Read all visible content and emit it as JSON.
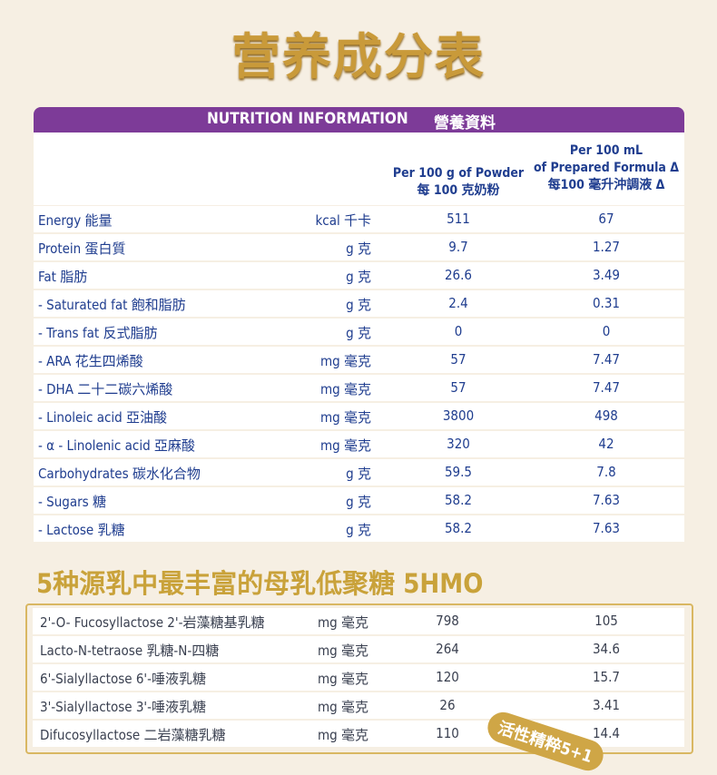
{
  "title": "营养成分表",
  "header": {
    "en": "NUTRITION INFORMATION",
    "zh": "營養資料"
  },
  "columns": [
    [
      "Per 100 g of Powder",
      "每 100 克奶粉"
    ],
    [
      "Per 100 mL",
      "of Prepared Formula Δ",
      "每100 毫升沖調液 Δ"
    ]
  ],
  "table": {
    "rows": [
      [
        "Energy 能量",
        "kcal 千卡",
        "511",
        "67"
      ],
      [
        "Protein 蛋白質",
        "g 克",
        "9.7",
        "1.27"
      ],
      [
        "Fat 脂肪",
        "g 克",
        "26.6",
        "3.49"
      ],
      [
        "- Saturated fat 飽和脂肪",
        "g 克",
        "2.4",
        "0.31"
      ],
      [
        "- Trans fat 反式脂肪",
        "g 克",
        "0",
        "0"
      ],
      [
        "- ARA 花生四烯酸",
        "mg 毫克",
        "57",
        "7.47"
      ],
      [
        "- DHA 二十二碳六烯酸",
        "mg 毫克",
        "57",
        "7.47"
      ],
      [
        "- Linoleic acid 亞油酸",
        "mg 毫克",
        "3800",
        "498"
      ],
      [
        "- α - Linolenic acid 亞麻酸",
        "mg 毫克",
        "320",
        "42"
      ],
      [
        "Carbohydrates 碳水化合物",
        "g 克",
        "59.5",
        "7.8"
      ],
      [
        "- Sugars 糖",
        "g 克",
        "58.2",
        "7.63"
      ],
      [
        "- Lactose 乳糖",
        "g 克",
        "58.2",
        "7.63"
      ]
    ]
  },
  "hmo": {
    "title": "5种源乳中最丰富的母乳低聚糖 5HMO",
    "rows": [
      [
        "2'-O- Fucosyllactose 2'-岩藻糖基乳糖",
        "mg 毫克",
        "798",
        "105"
      ],
      [
        "Lacto-N-tetraose 乳糖-N-四糖",
        "mg 毫克",
        "264",
        "34.6"
      ],
      [
        "6'-Sialyllactose 6'-唾液乳糖",
        "mg 毫克",
        "120",
        "15.7"
      ],
      [
        "3'-Sialyllactose 3'-唾液乳糖",
        "mg 毫克",
        "26",
        "3.41"
      ],
      [
        "Difucosyllactose 二岩藻糖乳糖",
        "mg 毫克",
        "110",
        "14.4"
      ]
    ],
    "badge": "活性精粹5+1"
  }
}
